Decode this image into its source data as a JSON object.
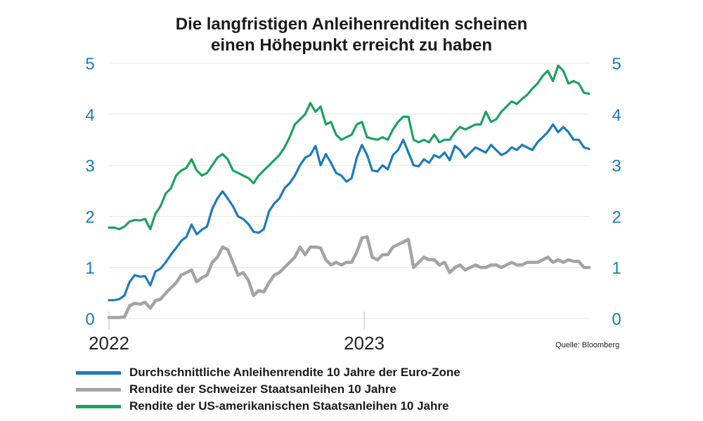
{
  "chart_data": {
    "type": "line",
    "title_lines": [
      "Die langfristigen Anleihenrenditen scheinen",
      "einen Höhepunkt erreicht zu haben"
    ],
    "source": "Quelle: Bloomberg",
    "x_ticks": [
      "2022",
      "2023"
    ],
    "y_ticks": [
      "0",
      "1",
      "2",
      "3",
      "4",
      "5"
    ],
    "ylim": [
      0,
      5
    ],
    "grid": "horizontal",
    "legend_placement": "bottom",
    "colors": {
      "axis_labels": "#1a7bbd",
      "grid": "#e6e6e6",
      "year_tick": "#bbbbbb"
    },
    "series": [
      {
        "name": "Durchschnittliche Anleihenrendite 10 Jahre der Euro-Zone",
        "color": "#1a7bbd",
        "values": [
          0.36,
          0.36,
          0.38,
          0.45,
          0.72,
          0.85,
          0.82,
          0.83,
          0.65,
          0.92,
          0.98,
          1.1,
          1.25,
          1.38,
          1.52,
          1.6,
          1.84,
          1.65,
          1.74,
          1.8,
          2.15,
          2.35,
          2.49,
          2.35,
          2.2,
          2.0,
          1.95,
          1.85,
          1.7,
          1.68,
          1.75,
          2.1,
          2.25,
          2.35,
          2.55,
          2.65,
          2.8,
          3.0,
          3.15,
          3.2,
          3.38,
          3.0,
          3.22,
          3.05,
          2.85,
          2.8,
          2.68,
          2.75,
          3.15,
          3.4,
          3.2,
          2.9,
          2.88,
          3.0,
          2.92,
          3.2,
          3.3,
          3.5,
          3.25,
          3.0,
          2.98,
          3.12,
          3.05,
          3.2,
          3.15,
          3.25,
          3.1,
          3.38,
          3.3,
          3.15,
          3.25,
          3.35,
          3.3,
          3.25,
          3.4,
          3.3,
          3.2,
          3.25,
          3.35,
          3.3,
          3.4,
          3.35,
          3.3,
          3.45,
          3.55,
          3.65,
          3.8,
          3.65,
          3.75,
          3.65,
          3.5,
          3.5,
          3.35,
          3.32
        ]
      },
      {
        "name": "Rendite der Schweizer Staatsanleihen 10 Jahre",
        "color": "#a3a3a3",
        "values": [
          0.02,
          0.02,
          0.02,
          0.03,
          0.25,
          0.3,
          0.28,
          0.32,
          0.2,
          0.35,
          0.38,
          0.5,
          0.6,
          0.7,
          0.85,
          0.9,
          0.95,
          0.72,
          0.8,
          0.85,
          1.1,
          1.2,
          1.4,
          1.35,
          1.1,
          0.85,
          0.9,
          0.75,
          0.45,
          0.55,
          0.52,
          0.7,
          0.85,
          0.9,
          1.0,
          1.1,
          1.2,
          1.4,
          1.25,
          1.4,
          1.4,
          1.38,
          1.15,
          1.05,
          1.1,
          1.05,
          1.1,
          1.1,
          1.3,
          1.58,
          1.6,
          1.2,
          1.15,
          1.25,
          1.25,
          1.4,
          1.45,
          1.5,
          1.55,
          1.0,
          1.1,
          1.2,
          1.15,
          1.15,
          1.05,
          1.1,
          0.9,
          1.0,
          1.05,
          0.95,
          1.0,
          1.05,
          1.0,
          1.0,
          1.05,
          1.05,
          1.0,
          1.05,
          1.1,
          1.05,
          1.05,
          1.1,
          1.1,
          1.1,
          1.15,
          1.2,
          1.1,
          1.15,
          1.1,
          1.15,
          1.12,
          1.12,
          1.0,
          1.0
        ]
      },
      {
        "name": "Rendite der US-amerikanischen Staatsanleihen 10 Jahre",
        "color": "#1ba25e",
        "values": [
          1.78,
          1.78,
          1.75,
          1.8,
          1.9,
          1.93,
          1.92,
          1.95,
          1.75,
          2.05,
          2.2,
          2.45,
          2.55,
          2.8,
          2.9,
          2.95,
          3.12,
          2.9,
          2.8,
          2.85,
          3.0,
          3.15,
          3.22,
          3.12,
          2.9,
          2.85,
          2.8,
          2.75,
          2.65,
          2.8,
          2.9,
          3.0,
          3.1,
          3.2,
          3.35,
          3.55,
          3.8,
          3.9,
          4.0,
          4.22,
          4.05,
          4.15,
          3.8,
          3.85,
          3.6,
          3.5,
          3.55,
          3.6,
          3.8,
          3.85,
          3.55,
          3.52,
          3.5,
          3.55,
          3.5,
          3.7,
          3.85,
          3.95,
          3.95,
          3.5,
          3.45,
          3.5,
          3.45,
          3.6,
          3.45,
          3.5,
          3.5,
          3.65,
          3.75,
          3.7,
          3.75,
          3.8,
          3.8,
          4.05,
          3.85,
          3.9,
          4.05,
          4.15,
          4.25,
          4.2,
          4.3,
          4.38,
          4.5,
          4.6,
          4.75,
          4.85,
          4.65,
          4.95,
          4.85,
          4.6,
          4.65,
          4.6,
          4.42,
          4.4
        ]
      }
    ]
  }
}
